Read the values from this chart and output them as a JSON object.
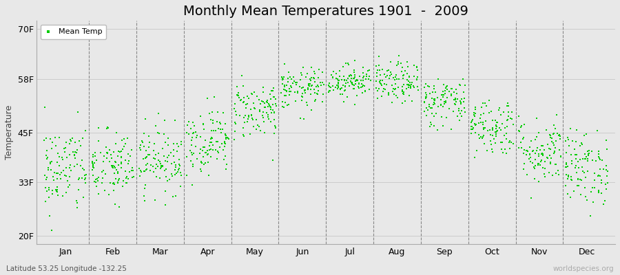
{
  "title": "Monthly Mean Temperatures 1901  -  2009",
  "ylabel": "Temperature",
  "xlabel_labels": [
    "Jan",
    "Feb",
    "Mar",
    "Apr",
    "May",
    "Jun",
    "Jul",
    "Aug",
    "Sep",
    "Oct",
    "Nov",
    "Dec"
  ],
  "ytick_labels": [
    "20F",
    "33F",
    "45F",
    "58F",
    "70F"
  ],
  "ytick_values": [
    20,
    33,
    45,
    58,
    70
  ],
  "ylim": [
    18,
    72
  ],
  "legend_label": "Mean Temp",
  "dot_color": "#00cc00",
  "dot_size": 2.5,
  "background_color": "#e8e8e8",
  "plot_bg_color": "#e8e8e8",
  "vline_color": "#888888",
  "hline_color": "#cccccc",
  "subtitle_text": "Latitude 53.25 Longitude -132.25",
  "watermark": "worldspecies.org",
  "title_fontsize": 14,
  "label_fontsize": 9,
  "tick_fontsize": 9,
  "monthly_means": [
    36.0,
    36.5,
    38.5,
    43.0,
    50.5,
    55.5,
    57.5,
    57.0,
    52.5,
    46.5,
    40.5,
    36.5
  ],
  "monthly_std": [
    5.5,
    4.5,
    4.0,
    4.0,
    3.5,
    2.5,
    2.0,
    2.5,
    3.0,
    3.5,
    4.0,
    4.5
  ],
  "n_years": 109,
  "seed": 42
}
